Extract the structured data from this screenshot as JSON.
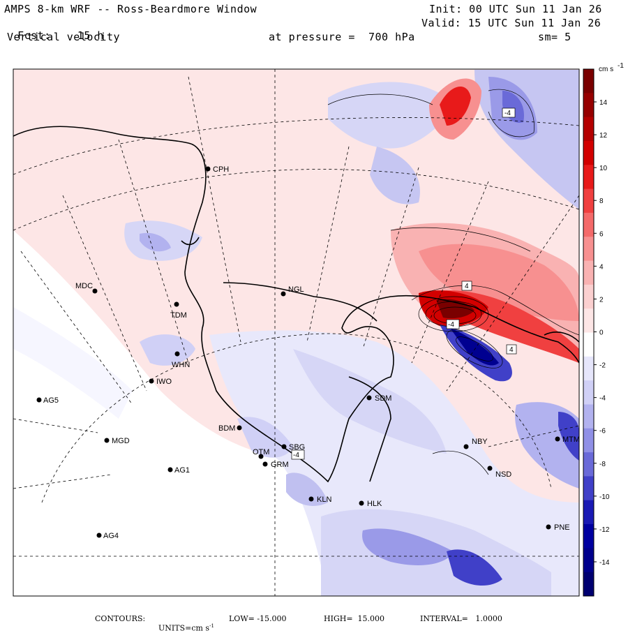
{
  "header": {
    "title": "AMPS 8-km WRF -- Ross-Beardmore Window",
    "fcst_label": "Fcst:",
    "fcst_value": "15 h",
    "field": "Vertical velocity",
    "init": "Init: 00 UTC Sun 11 Jan 26",
    "valid": "Valid: 15 UTC Sun 11 Jan 26",
    "pressure": "at pressure =  700 hPa",
    "smoothing": "sm= 5"
  },
  "colorbar": {
    "units": "cm s",
    "units_exp": "-1",
    "ticks": [
      "14",
      "12",
      "10",
      "8",
      "6",
      "4",
      "2",
      "0",
      "-2",
      "-4",
      "-6",
      "-8",
      "-10",
      "-12",
      "-14"
    ],
    "colors": [
      "#7a0000",
      "#960000",
      "#b40000",
      "#d20000",
      "#e81a1a",
      "#f04040",
      "#f46a6a",
      "#f79090",
      "#f9b2b2",
      "#fbd0d0",
      "#fde6e6",
      "#ffffff",
      "#e6e6fb",
      "#d0d0f6",
      "#b2b2ef",
      "#9090e6",
      "#6a6ad8",
      "#4040c8",
      "#1a1ab4",
      "#0000a0",
      "#00008c",
      "#000070"
    ]
  },
  "stations": [
    {
      "id": "CPH",
      "label": "CPH"
    },
    {
      "id": "NGL",
      "label": "NGL"
    },
    {
      "id": "MDC",
      "label": "MDC"
    },
    {
      "id": "TDM",
      "label": "TDM"
    },
    {
      "id": "WHN",
      "label": "WHN"
    },
    {
      "id": "IWO",
      "label": "IWO"
    },
    {
      "id": "AG5",
      "label": "AG5"
    },
    {
      "id": "SDM",
      "label": "SDM"
    },
    {
      "id": "BDM",
      "label": "BDM"
    },
    {
      "id": "MGD",
      "label": "MGD"
    },
    {
      "id": "SBG",
      "label": "SBG"
    },
    {
      "id": "OTM",
      "label": "OTM"
    },
    {
      "id": "GRM",
      "label": "GRM"
    },
    {
      "id": "AG1",
      "label": "AG1"
    },
    {
      "id": "NBY",
      "label": "NBY"
    },
    {
      "id": "MTM",
      "label": "MTM"
    },
    {
      "id": "NSD",
      "label": "NSD"
    },
    {
      "id": "KLN",
      "label": "KLN"
    },
    {
      "id": "HLK",
      "label": "HLK"
    },
    {
      "id": "AG4",
      "label": "AG4"
    },
    {
      "id": "PNE",
      "label": "PNE"
    }
  ],
  "contour_labels": [
    "-4",
    "4",
    "-4",
    "4",
    "-4"
  ],
  "footer": {
    "contours": "CONTOURS:",
    "units_label": "UNITS=cm s",
    "units_exp": "-1",
    "low": "LOW= -15.000",
    "high": "HIGH=  15.000",
    "interval": "INTERVAL=   1.0000"
  }
}
